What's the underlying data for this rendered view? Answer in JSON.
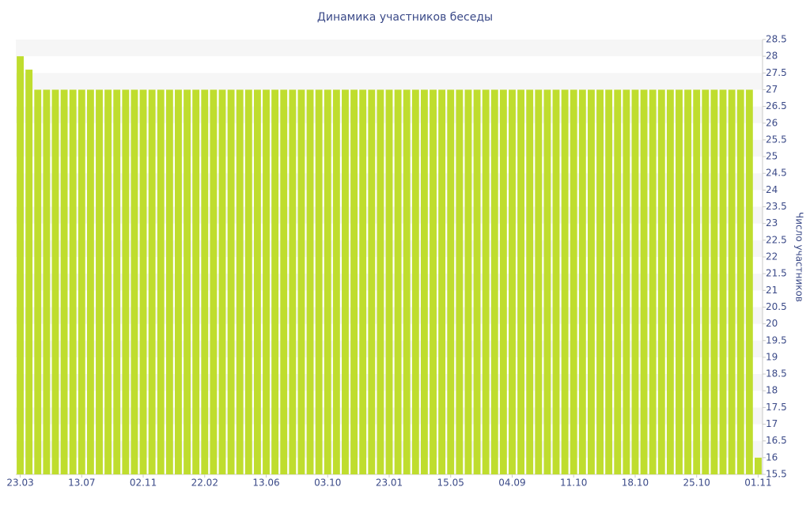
{
  "chart_data": {
    "type": "bar",
    "title": "Динамика участников беседы",
    "y_label": "Число участников",
    "categories": [
      "23.03",
      null,
      null,
      null,
      null,
      null,
      null,
      "13.07",
      null,
      null,
      null,
      null,
      null,
      null,
      "02.11",
      null,
      null,
      null,
      null,
      null,
      null,
      "22.02",
      null,
      null,
      null,
      null,
      null,
      null,
      "13.06",
      null,
      null,
      null,
      null,
      null,
      null,
      "03.10",
      null,
      null,
      null,
      null,
      null,
      null,
      "23.01",
      null,
      null,
      null,
      null,
      null,
      null,
      "15.05",
      null,
      null,
      null,
      null,
      null,
      null,
      "04.09",
      null,
      null,
      null,
      null,
      null,
      null,
      "11.10",
      null,
      null,
      null,
      null,
      null,
      null,
      "18.10",
      null,
      null,
      null,
      null,
      null,
      null,
      "25.10",
      null,
      null,
      null,
      null,
      null,
      null,
      "01.11"
    ],
    "values": [
      28,
      27.6,
      27,
      27,
      27,
      27,
      27,
      27,
      27,
      27,
      27,
      27,
      27,
      27,
      27,
      27,
      27,
      27,
      27,
      27,
      27,
      27,
      27,
      27,
      27,
      27,
      27,
      27,
      27,
      27,
      27,
      27,
      27,
      27,
      27,
      27,
      27,
      27,
      27,
      27,
      27,
      27,
      27,
      27,
      27,
      27,
      27,
      27,
      27,
      27,
      27,
      27,
      27,
      27,
      27,
      27,
      27,
      27,
      27,
      27,
      27,
      27,
      27,
      27,
      27,
      27,
      27,
      27,
      27,
      27,
      27,
      27,
      27,
      27,
      27,
      27,
      27,
      27,
      27,
      27,
      27,
      27,
      27,
      27,
      16
    ],
    "color": "#bfdd2e",
    "y_axis_side": "right",
    "grid": "bands",
    "band_color": "#f6f6f6",
    "ylim": [
      15.5,
      28.5
    ],
    "yticks": [
      15.5,
      16,
      16.5,
      17,
      17.5,
      18,
      18.5,
      19,
      19.5,
      20,
      20.5,
      21,
      21.5,
      22,
      22.5,
      23,
      23.5,
      24,
      24.5,
      25,
      25.5,
      26,
      26.5,
      27,
      27.5,
      28,
      28.5
    ]
  }
}
